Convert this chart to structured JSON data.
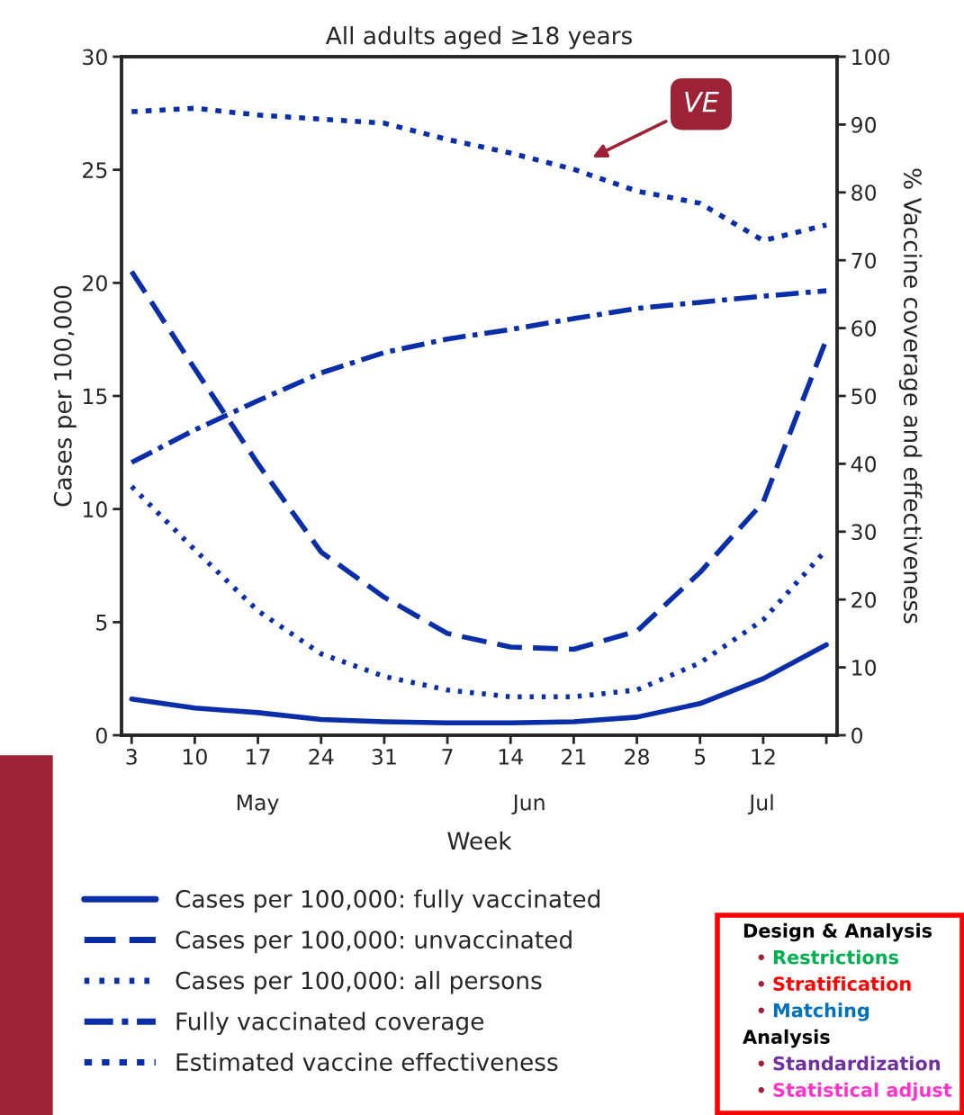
{
  "chart_data": {
    "type": "line",
    "title": "All adults aged ≥18 years",
    "xlabel": "Week",
    "ylabel": "Cases per 100,000",
    "y2label": "% Vaccine coverage and effectiveness",
    "categories": [
      "3",
      "10",
      "17",
      "24",
      "31",
      "7",
      "14",
      "21",
      "28",
      "5",
      "12",
      null
    ],
    "ylim": [
      0,
      30
    ],
    "yticks": [
      0,
      5,
      10,
      15,
      20,
      25,
      30
    ],
    "y2lim": [
      0,
      100
    ],
    "y2ticks": [
      0,
      10,
      20,
      30,
      40,
      50,
      60,
      70,
      80,
      90,
      100
    ],
    "grid": false,
    "legend": "bottom",
    "series": [
      {
        "name": "Cases per 100,000: fully vaccinated",
        "color": "#0a2ea8",
        "line_style": "solid",
        "values": [
          1.6,
          1.2,
          1.0,
          0.7,
          0.6,
          0.55,
          0.55,
          0.6,
          0.8,
          1.4,
          2.5,
          4.0
        ]
      },
      {
        "name": "Cases per 100,000: unvaccinated",
        "color": "#0a2ea8",
        "line_style": "long dashed",
        "values": [
          20.5,
          16.2,
          12.0,
          8.1,
          6.1,
          4.5,
          3.9,
          3.8,
          4.6,
          7.2,
          10.3,
          17.5
        ]
      },
      {
        "name": "Cases per 100,000: all persons",
        "color": "#0a2ea8",
        "line_style": "dotted",
        "values": [
          11.0,
          8.2,
          5.5,
          3.6,
          2.6,
          2.0,
          1.7,
          1.7,
          2.0,
          3.2,
          5.1,
          8.2
        ]
      },
      {
        "name": "Fully vaccinated coverage",
        "color": "#0a2ea8",
        "line_style": "dashdot",
        "axis": "y2",
        "values": [
          40.2,
          45.0,
          49.3,
          53.4,
          56.4,
          58.4,
          59.8,
          61.4,
          62.9,
          63.8,
          64.7,
          65.5
        ]
      },
      {
        "name": "Estimated vaccine effectiveness",
        "color": "#0a2ea8",
        "line_style": "dashed",
        "axis": "y2",
        "values": [
          91.9,
          92.4,
          91.4,
          90.8,
          90.2,
          87.8,
          85.8,
          83.4,
          80.2,
          78.4,
          72.9,
          75.2
        ]
      }
    ],
    "annotations": [
      "May",
      "Jun",
      "Jul",
      "VE",
      "Design & Analysis",
      "• Restrictions",
      "• Stratification",
      "• Matching",
      "Analysis",
      "• Standardization",
      "• Statistical adjust"
    ]
  }
}
